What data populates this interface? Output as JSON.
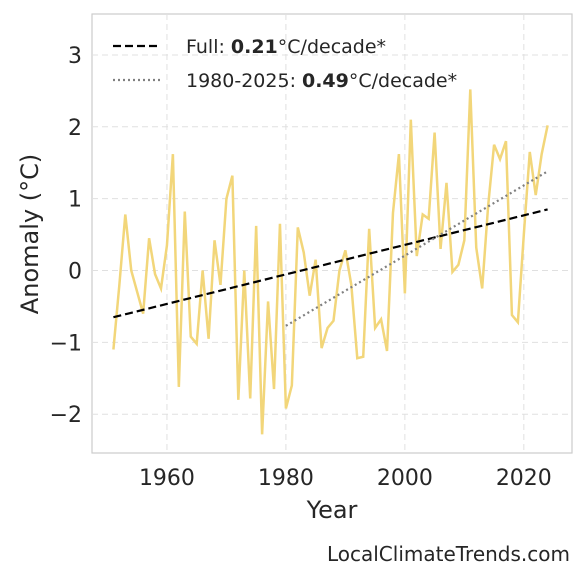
{
  "chart_data": {
    "type": "line",
    "x": [
      1951,
      1952,
      1953,
      1954,
      1955,
      1956,
      1957,
      1958,
      1959,
      1960,
      1961,
      1962,
      1963,
      1964,
      1965,
      1966,
      1967,
      1968,
      1969,
      1970,
      1971,
      1972,
      1973,
      1974,
      1975,
      1976,
      1977,
      1978,
      1979,
      1980,
      1981,
      1982,
      1983,
      1984,
      1985,
      1986,
      1987,
      1988,
      1989,
      1990,
      1991,
      1992,
      1993,
      1994,
      1995,
      1996,
      1997,
      1998,
      1999,
      2000,
      2001,
      2002,
      2003,
      2004,
      2005,
      2006,
      2007,
      2008,
      2009,
      2010,
      2011,
      2012,
      2013,
      2014,
      2015,
      2016,
      2017,
      2018,
      2019,
      2020,
      2021,
      2022,
      2023,
      2024
    ],
    "series": [
      {
        "color": "#f2d67a",
        "style": "solid",
        "values": [
          -1.1,
          -0.2,
          0.78,
          0.0,
          -0.3,
          -0.6,
          0.45,
          -0.05,
          -0.25,
          0.35,
          1.62,
          -1.62,
          0.82,
          -0.92,
          -1.02,
          0.0,
          -0.95,
          0.42,
          -0.2,
          1.0,
          1.32,
          -1.8,
          0.0,
          -1.78,
          0.62,
          -2.28,
          -0.43,
          -1.65,
          0.65,
          -1.92,
          -1.6,
          0.6,
          0.25,
          -0.35,
          0.15,
          -1.08,
          -0.8,
          -0.7,
          0.0,
          0.28,
          -0.2,
          -1.22,
          -1.2,
          0.58,
          -0.8,
          -0.68,
          -1.12,
          0.8,
          1.62,
          -0.32,
          2.1,
          0.2,
          0.78,
          0.72,
          1.92,
          0.3,
          1.22,
          -0.02,
          0.08,
          0.42,
          2.52,
          0.32,
          -0.25,
          0.9,
          1.75,
          1.55,
          1.8,
          -0.62,
          -0.72,
          0.5,
          1.65,
          1.05,
          1.62,
          2.02
        ]
      },
      {
        "name": "Full:",
        "rate": "0.21",
        "color": "#000000",
        "style": "dashed",
        "x": [
          1951,
          2024
        ],
        "values": [
          -0.65,
          0.85
        ]
      },
      {
        "name": "1980-2025:",
        "rate": "0.49",
        "color": "#808080",
        "style": "dotted",
        "x": [
          1980,
          2024
        ],
        "values": [
          -0.77,
          1.38
        ]
      }
    ],
    "rate_unit": "°C/decade*",
    "x_label": "Year",
    "y_label": "Anomaly (°C)",
    "xlim": [
      1947.4,
      2028.1
    ],
    "xticks": [
      1960,
      1980,
      2000,
      2020
    ],
    "ylim": [
      -2.54,
      3.57
    ],
    "yticks": [
      {
        "value": -2,
        "label": "−2"
      },
      {
        "value": -1,
        "label": "−1"
      },
      0,
      1,
      2,
      3
    ],
    "grid": true,
    "legend": "upper left",
    "source": "LocalClimateTrends.com"
  }
}
